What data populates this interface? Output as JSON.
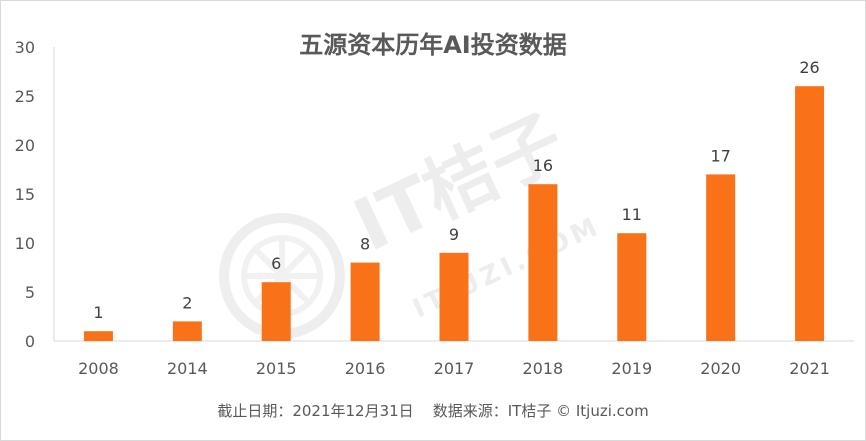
{
  "chart_data": {
    "type": "bar",
    "title": "五源资本历年AI投资数据",
    "categories": [
      "2008",
      "2014",
      "2015",
      "2016",
      "2017",
      "2018",
      "2019",
      "2020",
      "2021"
    ],
    "values": [
      1,
      2,
      6,
      8,
      9,
      16,
      11,
      17,
      26
    ],
    "ylim": [
      0,
      30
    ],
    "yticks": [
      "0",
      "5",
      "10",
      "15",
      "20",
      "25",
      "30"
    ],
    "grid": false,
    "legend": "none",
    "bar_color": "#FA7218",
    "xlabel": "",
    "ylabel": ""
  },
  "source_note": "截止日期：2021年12月31日    数据来源：IT桔子 © Itjuzi.com",
  "watermark": {
    "brand": "IT桔子",
    "url": "ITJUZI.COM"
  }
}
